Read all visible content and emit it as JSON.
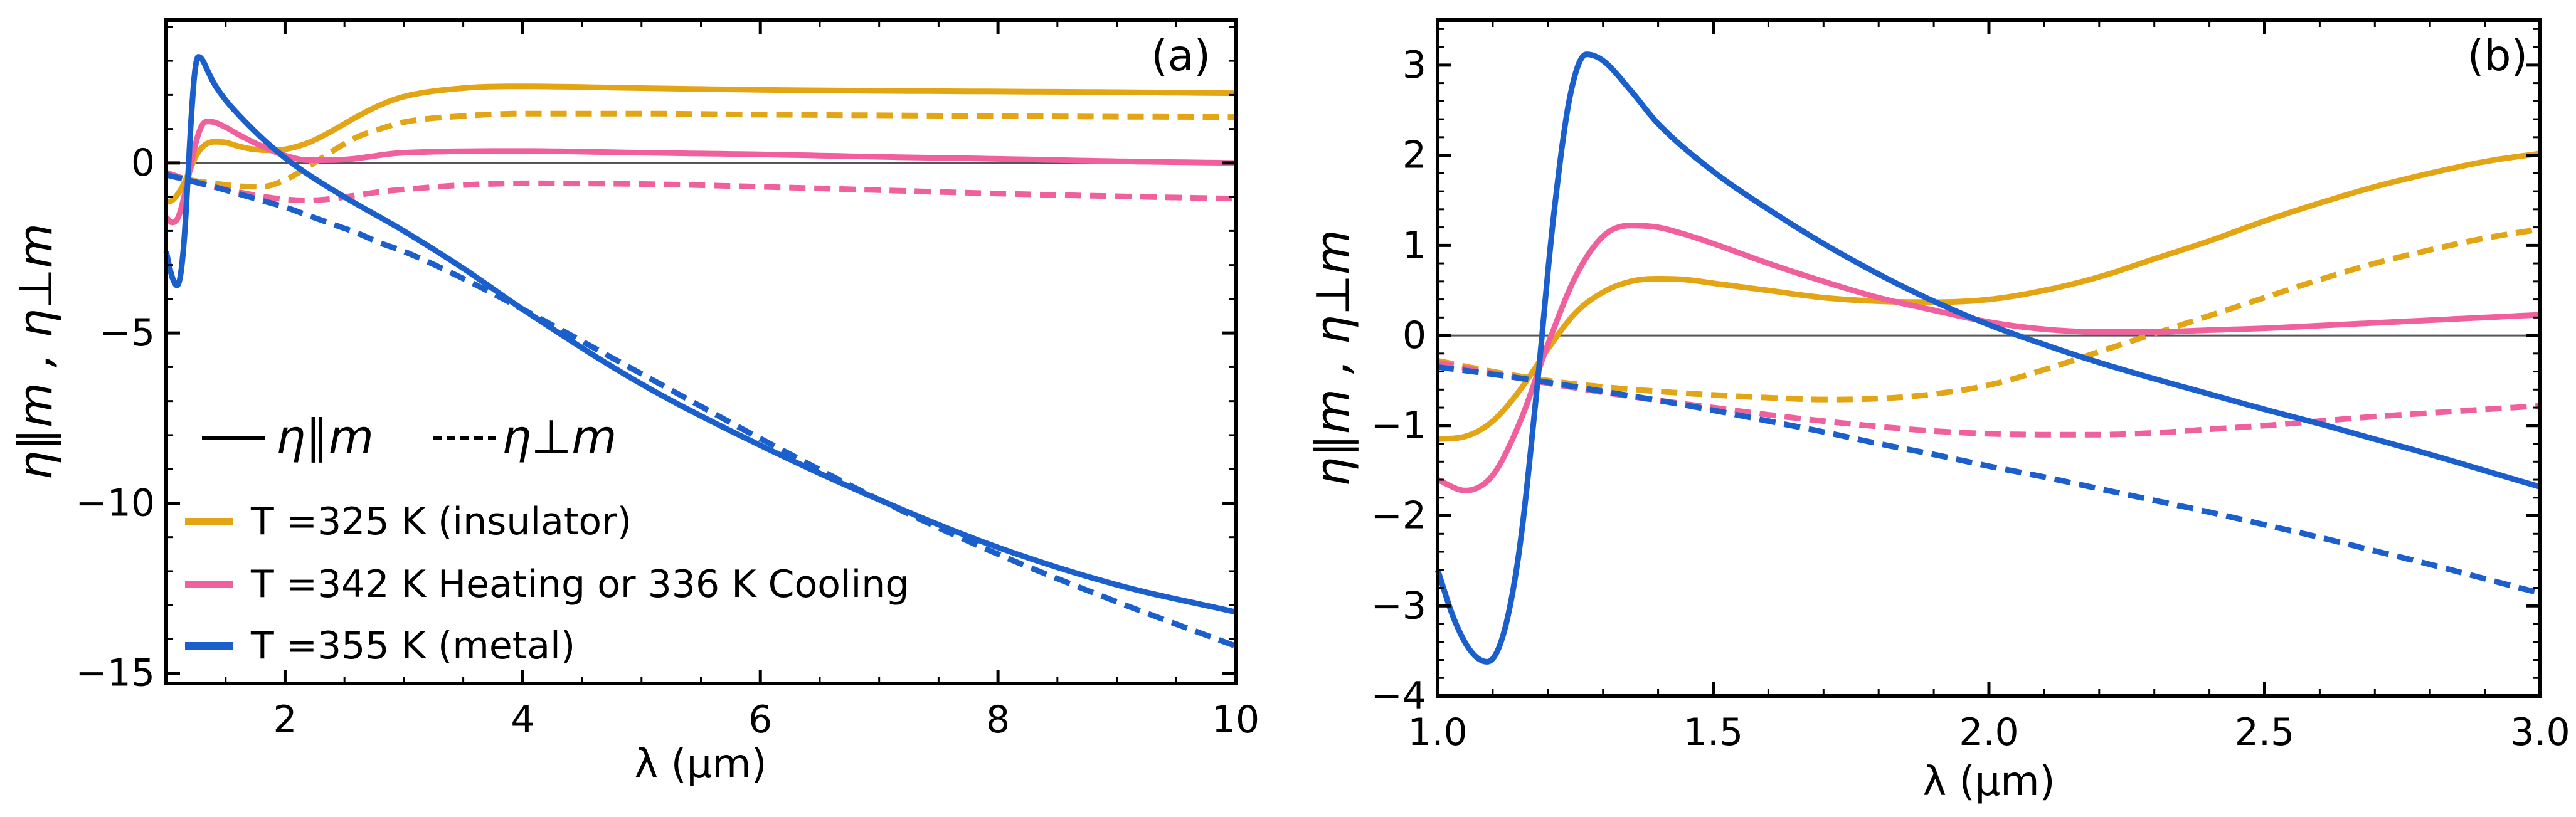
{
  "colors": {
    "insulator": "#e3a514",
    "transition": "#f0609c",
    "metal": "#1a5fcc",
    "axis": "#000000",
    "zero_line": "#555555"
  },
  "legend": {
    "eta_par": "η∥m",
    "eta_perp": "η⊥m",
    "entries": [
      {
        "label": "T =325 K (insulator)",
        "color_key": "insulator"
      },
      {
        "label": "T =342 K Heating or 336 K Cooling",
        "color_key": "transition"
      },
      {
        "label": "T =355 K (metal)",
        "color_key": "metal"
      }
    ]
  },
  "chart_data": [
    {
      "panel": "(a)",
      "type": "line",
      "xlabel": "λ (μm)",
      "ylabel": "η∥m , η⊥m",
      "xlim": [
        1,
        10
      ],
      "ylim": [
        -15.3,
        4.2
      ],
      "xticks": [
        2,
        4,
        6,
        8,
        10
      ],
      "yticks": [
        0,
        -5,
        -10,
        -15
      ],
      "ytick_labels": [
        "0",
        "−5",
        "−10",
        "−15"
      ],
      "series": [
        {
          "name": "T =325 K parallel",
          "color_key": "insulator",
          "dash": false,
          "x": [
            1.0,
            1.05,
            1.1,
            1.15,
            1.2,
            1.25,
            1.3,
            1.35,
            1.4,
            1.5,
            1.6,
            1.7,
            1.8,
            1.9,
            2.0,
            2.2,
            2.4,
            2.6,
            2.8,
            3.0,
            3.5,
            4.0,
            5.0,
            6.0,
            7.0,
            8.0,
            9.0,
            10.0
          ],
          "y": [
            -1.15,
            -1.1,
            -0.9,
            -0.6,
            -0.2,
            0.2,
            0.45,
            0.58,
            0.62,
            0.6,
            0.5,
            0.42,
            0.38,
            0.37,
            0.4,
            0.6,
            0.95,
            1.35,
            1.7,
            1.95,
            2.2,
            2.25,
            2.2,
            2.15,
            2.12,
            2.1,
            2.08,
            2.05
          ]
        },
        {
          "name": "T =325 K perpendicular",
          "color_key": "insulator",
          "dash": true,
          "x": [
            1.0,
            1.2,
            1.4,
            1.6,
            1.8,
            2.0,
            2.2,
            2.4,
            2.6,
            2.8,
            3.0,
            3.5,
            4.0,
            5.0,
            6.0,
            7.0,
            8.0,
            9.0,
            10.0
          ],
          "y": [
            -0.3,
            -0.5,
            -0.6,
            -0.68,
            -0.7,
            -0.5,
            -0.1,
            0.35,
            0.75,
            1.0,
            1.2,
            1.38,
            1.45,
            1.45,
            1.42,
            1.4,
            1.38,
            1.36,
            1.35
          ]
        },
        {
          "name": "T =342 K parallel",
          "color_key": "transition",
          "dash": false,
          "x": [
            1.0,
            1.05,
            1.1,
            1.15,
            1.2,
            1.25,
            1.3,
            1.35,
            1.4,
            1.5,
            1.6,
            1.8,
            2.0,
            2.2,
            2.5,
            3.0,
            4.0,
            5.0,
            6.0,
            7.0,
            8.0,
            9.0,
            10.0
          ],
          "y": [
            -1.6,
            -1.75,
            -1.6,
            -1.0,
            -0.2,
            0.6,
            1.1,
            1.22,
            1.2,
            1.05,
            0.85,
            0.5,
            0.22,
            0.08,
            0.1,
            0.3,
            0.35,
            0.3,
            0.25,
            0.18,
            0.12,
            0.05,
            0.0
          ]
        },
        {
          "name": "T =342 K perpendicular",
          "color_key": "transition",
          "dash": true,
          "x": [
            1.0,
            1.2,
            1.4,
            1.6,
            1.8,
            2.0,
            2.2,
            2.4,
            2.6,
            2.8,
            3.0,
            3.5,
            4.0,
            5.0,
            6.0,
            7.0,
            8.0,
            9.0,
            10.0
          ],
          "y": [
            -0.28,
            -0.52,
            -0.7,
            -0.85,
            -0.98,
            -1.07,
            -1.1,
            -1.05,
            -0.95,
            -0.85,
            -0.78,
            -0.65,
            -0.6,
            -0.62,
            -0.7,
            -0.8,
            -0.9,
            -0.98,
            -1.05
          ]
        },
        {
          "name": "T =355 K parallel",
          "color_key": "metal",
          "dash": false,
          "x": [
            1.0,
            1.03,
            1.06,
            1.09,
            1.12,
            1.15,
            1.18,
            1.21,
            1.24,
            1.27,
            1.3,
            1.35,
            1.4,
            1.5,
            1.6,
            1.8,
            2.0,
            2.2,
            2.5,
            3.0,
            3.5,
            4.0,
            5.0,
            6.0,
            7.0,
            8.0,
            9.0,
            10.0
          ],
          "y": [
            -2.6,
            -3.1,
            -3.45,
            -3.6,
            -3.3,
            -2.3,
            -0.6,
            1.3,
            2.65,
            3.12,
            3.05,
            2.7,
            2.35,
            1.85,
            1.45,
            0.75,
            0.15,
            -0.35,
            -1.0,
            -2.0,
            -3.1,
            -4.3,
            -6.5,
            -8.3,
            -9.9,
            -11.3,
            -12.4,
            -13.2
          ]
        },
        {
          "name": "T =355 K perpendicular",
          "color_key": "metal",
          "dash": true,
          "x": [
            1.0,
            1.2,
            1.4,
            1.6,
            1.8,
            2.0,
            2.2,
            2.4,
            2.6,
            2.8,
            3.0,
            3.5,
            4.0,
            5.0,
            6.0,
            7.0,
            8.0,
            9.0,
            10.0
          ],
          "y": [
            -0.35,
            -0.52,
            -0.7,
            -0.9,
            -1.1,
            -1.3,
            -1.55,
            -1.8,
            -2.05,
            -2.35,
            -2.6,
            -3.4,
            -4.3,
            -6.2,
            -8.1,
            -9.9,
            -11.5,
            -12.9,
            -14.2
          ]
        }
      ]
    },
    {
      "panel": "(b)",
      "type": "line",
      "xlabel": "λ (μm)",
      "ylabel": "η∥m , η⊥m",
      "xlim": [
        1.0,
        3.0
      ],
      "ylim": [
        -4.0,
        3.5
      ],
      "xticks": [
        1.0,
        1.5,
        2.0,
        2.5,
        3.0
      ],
      "xtick_labels": [
        "1.0",
        "1.5",
        "2.0",
        "2.5",
        "3.0"
      ],
      "yticks": [
        3,
        2,
        1,
        0,
        -1,
        -2,
        -3,
        -4
      ],
      "ytick_labels": [
        "3",
        "2",
        "1",
        "0",
        "−1",
        "−2",
        "−3",
        "−4"
      ],
      "series": [
        {
          "name": "T =325 K parallel",
          "color_key": "insulator",
          "dash": false,
          "x": [
            1.0,
            1.05,
            1.1,
            1.15,
            1.2,
            1.25,
            1.3,
            1.35,
            1.4,
            1.45,
            1.5,
            1.6,
            1.7,
            1.8,
            1.9,
            2.0,
            2.1,
            2.2,
            2.3,
            2.4,
            2.5,
            2.6,
            2.7,
            2.8,
            2.9,
            3.0
          ],
          "y": [
            -1.15,
            -1.12,
            -0.95,
            -0.6,
            -0.15,
            0.25,
            0.48,
            0.6,
            0.63,
            0.62,
            0.58,
            0.5,
            0.42,
            0.38,
            0.37,
            0.4,
            0.5,
            0.65,
            0.85,
            1.05,
            1.27,
            1.47,
            1.65,
            1.8,
            1.93,
            2.02
          ]
        },
        {
          "name": "T =325 K perpendicular",
          "color_key": "insulator",
          "dash": true,
          "x": [
            1.0,
            1.1,
            1.2,
            1.3,
            1.4,
            1.5,
            1.6,
            1.7,
            1.8,
            1.9,
            2.0,
            2.1,
            2.2,
            2.3,
            2.4,
            2.5,
            2.6,
            2.7,
            2.8,
            2.9,
            3.0
          ],
          "y": [
            -0.28,
            -0.4,
            -0.5,
            -0.57,
            -0.62,
            -0.66,
            -0.69,
            -0.71,
            -0.7,
            -0.65,
            -0.55,
            -0.38,
            -0.18,
            0.02,
            0.22,
            0.42,
            0.62,
            0.8,
            0.95,
            1.08,
            1.18
          ]
        },
        {
          "name": "T =342 K parallel",
          "color_key": "transition",
          "dash": false,
          "x": [
            1.0,
            1.05,
            1.1,
            1.15,
            1.2,
            1.25,
            1.3,
            1.35,
            1.4,
            1.45,
            1.5,
            1.6,
            1.7,
            1.8,
            1.9,
            2.0,
            2.1,
            2.2,
            2.3,
            2.4,
            2.5,
            2.6,
            2.7,
            2.8,
            2.9,
            3.0
          ],
          "y": [
            -1.6,
            -1.72,
            -1.55,
            -0.95,
            -0.1,
            0.65,
            1.1,
            1.22,
            1.2,
            1.12,
            1.02,
            0.8,
            0.6,
            0.42,
            0.28,
            0.15,
            0.07,
            0.04,
            0.04,
            0.06,
            0.08,
            0.11,
            0.14,
            0.17,
            0.2,
            0.23
          ]
        },
        {
          "name": "T =342 K perpendicular",
          "color_key": "transition",
          "dash": true,
          "x": [
            1.0,
            1.1,
            1.2,
            1.3,
            1.4,
            1.5,
            1.6,
            1.7,
            1.8,
            1.9,
            2.0,
            2.1,
            2.2,
            2.3,
            2.4,
            2.5,
            2.6,
            2.7,
            2.8,
            2.9,
            3.0
          ],
          "y": [
            -0.3,
            -0.42,
            -0.53,
            -0.63,
            -0.72,
            -0.8,
            -0.88,
            -0.95,
            -1.01,
            -1.06,
            -1.09,
            -1.1,
            -1.1,
            -1.08,
            -1.04,
            -1.0,
            -0.95,
            -0.9,
            -0.86,
            -0.82,
            -0.78
          ]
        },
        {
          "name": "T =355 K parallel",
          "color_key": "metal",
          "dash": false,
          "x": [
            1.0,
            1.03,
            1.06,
            1.09,
            1.12,
            1.15,
            1.18,
            1.21,
            1.24,
            1.27,
            1.3,
            1.35,
            1.4,
            1.5,
            1.6,
            1.7,
            1.8,
            1.9,
            2.0,
            2.1,
            2.2,
            2.3,
            2.4,
            2.5,
            2.6,
            2.7,
            2.8,
            2.9,
            3.0
          ],
          "y": [
            -2.6,
            -3.15,
            -3.5,
            -3.62,
            -3.3,
            -2.3,
            -0.6,
            1.3,
            2.65,
            3.12,
            3.05,
            2.72,
            2.35,
            1.82,
            1.4,
            1.02,
            0.68,
            0.38,
            0.12,
            -0.1,
            -0.3,
            -0.48,
            -0.65,
            -0.82,
            -0.98,
            -1.15,
            -1.32,
            -1.5,
            -1.68
          ]
        },
        {
          "name": "T =355 K perpendicular",
          "color_key": "metal",
          "dash": true,
          "x": [
            1.0,
            1.1,
            1.2,
            1.3,
            1.4,
            1.5,
            1.6,
            1.7,
            1.8,
            1.9,
            2.0,
            2.1,
            2.2,
            2.3,
            2.4,
            2.5,
            2.6,
            2.7,
            2.8,
            2.9,
            3.0
          ],
          "y": [
            -0.35,
            -0.43,
            -0.52,
            -0.62,
            -0.72,
            -0.83,
            -0.95,
            -1.07,
            -1.2,
            -1.32,
            -1.45,
            -1.57,
            -1.7,
            -1.83,
            -1.96,
            -2.1,
            -2.24,
            -2.39,
            -2.54,
            -2.7,
            -2.86
          ]
        }
      ]
    }
  ]
}
